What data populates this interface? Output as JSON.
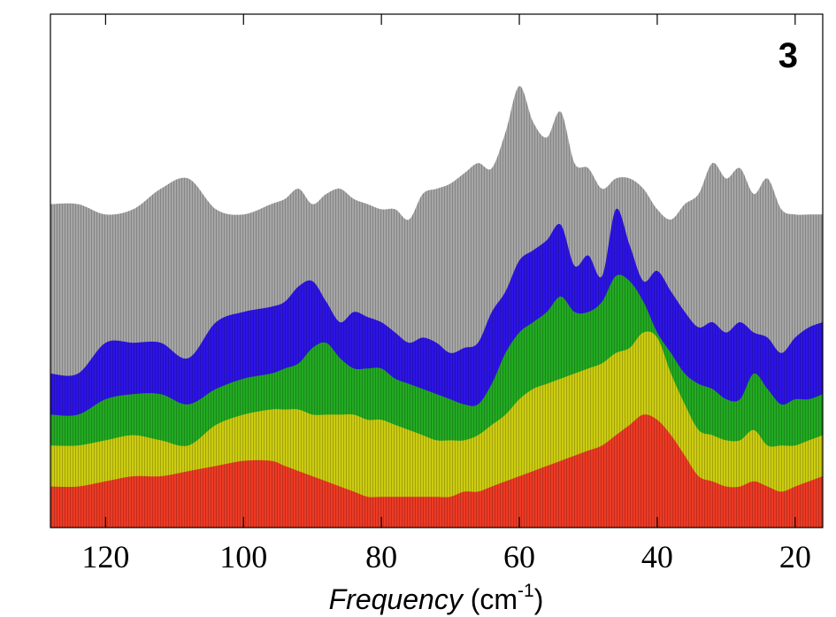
{
  "chart_data": {
    "type": "area",
    "panel_label": "3",
    "title": "",
    "xlabel": {
      "italic": "Frequency",
      "unit_open": " (cm",
      "unit_sup": "-1",
      "unit_close": ")"
    },
    "ylabel": "",
    "x_reversed": true,
    "xlim": [
      128,
      16
    ],
    "ylim": [
      0,
      100
    ],
    "xticks": [
      120,
      100,
      80,
      60,
      40,
      20
    ],
    "grid": false,
    "x": [
      128,
      124,
      120,
      116,
      112,
      108,
      104,
      100,
      96,
      94,
      92,
      90,
      88,
      86,
      84,
      82,
      80,
      78,
      76,
      74,
      72,
      70,
      68,
      66,
      64,
      62,
      60,
      58,
      56,
      54,
      52,
      50,
      48,
      46,
      44,
      42,
      40,
      38,
      36,
      34,
      32,
      30,
      28,
      26,
      24,
      22,
      20,
      18,
      16
    ],
    "series": [
      {
        "name": "gray",
        "color": "#a6a6a6",
        "values": [
          63,
          63,
          61,
          62,
          66,
          68,
          62,
          61,
          63,
          64,
          66,
          63,
          65,
          66,
          64,
          63,
          62,
          62,
          60,
          65,
          66,
          67,
          69,
          71,
          70,
          77,
          86,
          79,
          76,
          81,
          71,
          70,
          66,
          68,
          68,
          66,
          62,
          60,
          63,
          65,
          71,
          68,
          70,
          65,
          68,
          62,
          61,
          61,
          61
        ]
      },
      {
        "name": "blue",
        "color": "#2d14e6",
        "values": [
          30,
          30,
          36,
          36,
          36,
          33,
          40,
          42,
          43,
          44,
          47,
          48,
          44,
          40,
          42,
          41,
          40,
          38,
          36,
          37,
          36,
          34,
          35,
          36,
          42,
          46,
          52,
          54,
          56,
          59,
          51,
          53,
          49,
          62,
          55,
          48,
          50,
          46,
          42,
          39,
          40,
          38,
          40,
          38,
          37,
          34,
          37,
          39,
          40
        ]
      },
      {
        "name": "green",
        "color": "#22aa22",
        "values": [
          22,
          22,
          25,
          26,
          26,
          24,
          27,
          29,
          30,
          31,
          32,
          35,
          36,
          33,
          31,
          31,
          31,
          29,
          28,
          27,
          26,
          25,
          24,
          24,
          28,
          34,
          38,
          40,
          42,
          45,
          42,
          42,
          44,
          49,
          48,
          44,
          38,
          34,
          30,
          28,
          27,
          25,
          25,
          30,
          27,
          24,
          25,
          25,
          26
        ]
      },
      {
        "name": "yellow",
        "color": "#cccc10",
        "values": [
          16,
          16,
          17,
          18,
          17,
          16,
          20,
          22,
          23,
          23,
          23,
          22,
          22,
          22,
          22,
          21,
          21,
          20,
          19,
          18,
          17,
          17,
          17,
          18,
          20,
          22,
          25,
          27,
          28,
          29,
          30,
          31,
          32,
          34,
          35,
          38,
          37,
          30,
          24,
          19,
          18,
          17,
          17,
          19,
          16,
          16,
          16,
          17,
          18
        ]
      },
      {
        "name": "red",
        "color": "#ee3a24",
        "values": [
          8,
          8,
          9,
          10,
          10,
          11,
          12,
          13,
          13,
          12,
          11,
          10,
          9,
          8,
          7,
          6,
          6,
          6,
          6,
          6,
          6,
          6,
          7,
          7,
          8,
          9,
          10,
          11,
          12,
          13,
          14,
          15,
          16,
          18,
          20,
          22,
          21,
          18,
          14,
          10,
          9,
          8,
          8,
          9,
          8,
          7,
          8,
          9,
          10
        ]
      }
    ]
  }
}
